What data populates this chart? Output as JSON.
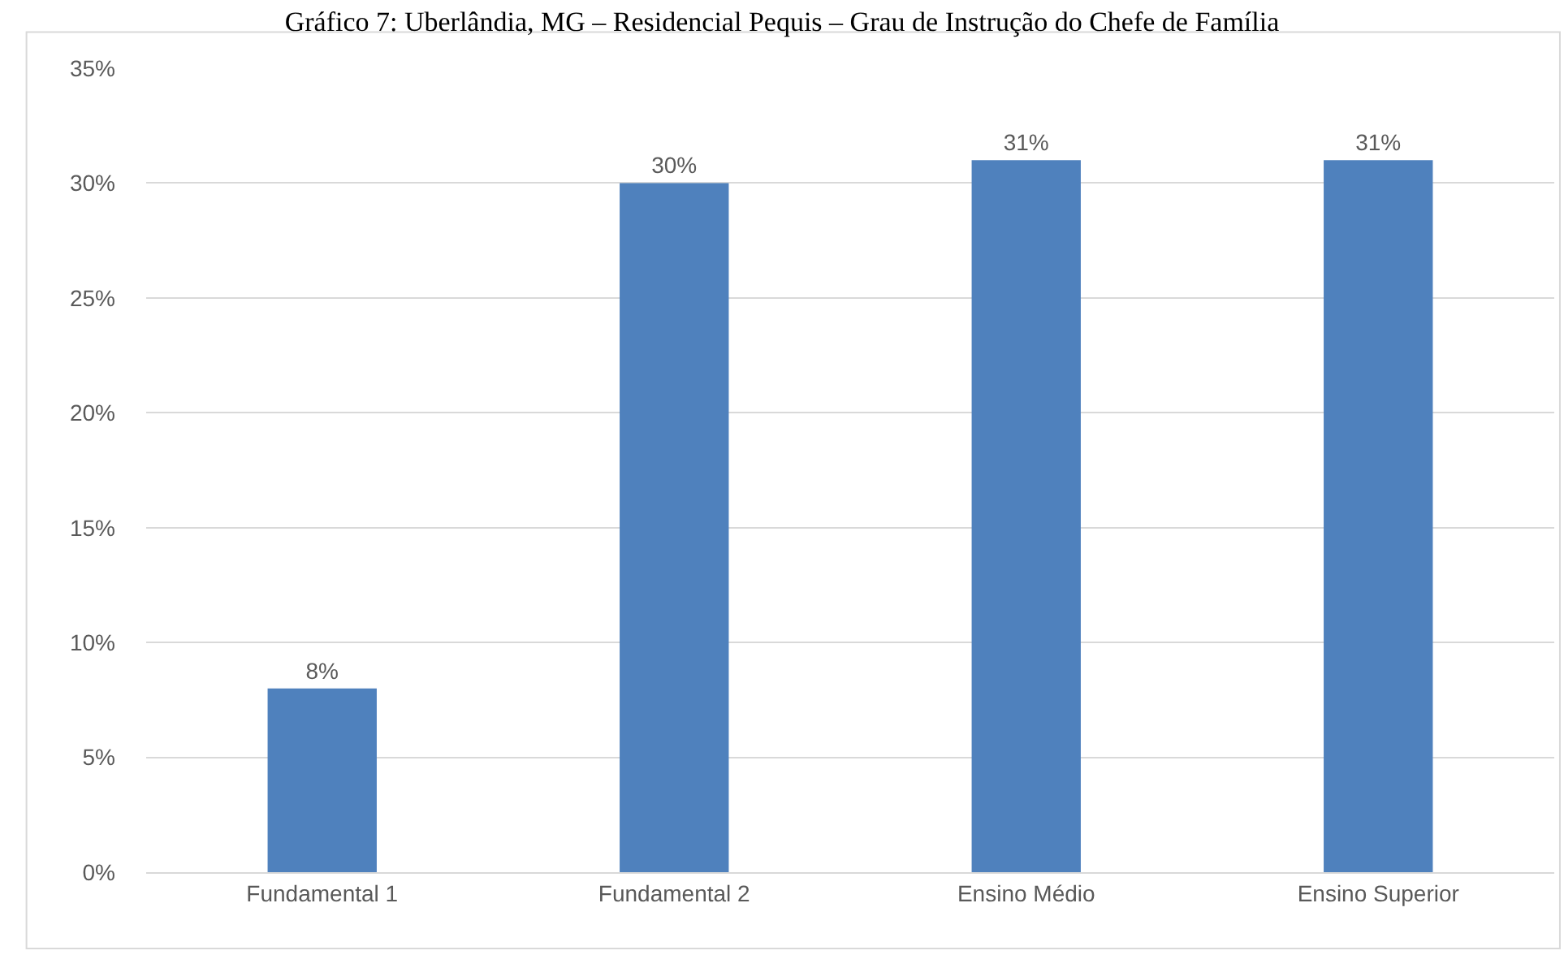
{
  "chart_data": {
    "type": "bar",
    "title": "Gráfico 7: Uberlândia, MG – Residencial Pequis – Grau de Instrução do Chefe de Família",
    "categories": [
      "Fundamental 1",
      "Fundamental 2",
      "Ensino Médio",
      "Ensino Superior"
    ],
    "values": [
      8,
      30,
      31,
      31
    ],
    "color": "#4f81bd",
    "value_labels": [
      "8%",
      "30%",
      "31%",
      "31%"
    ],
    "ylim": [
      0,
      35
    ],
    "yticks": [
      {
        "value": 0,
        "label": "0%"
      },
      {
        "value": 5,
        "label": "5%"
      },
      {
        "value": 10,
        "label": "10%"
      },
      {
        "value": 15,
        "label": "15%"
      },
      {
        "value": 20,
        "label": "20%"
      },
      {
        "value": 25,
        "label": "25%"
      },
      {
        "value": 30,
        "label": "30%"
      },
      {
        "value": 35,
        "label": "35%"
      }
    ],
    "grid": "y"
  }
}
